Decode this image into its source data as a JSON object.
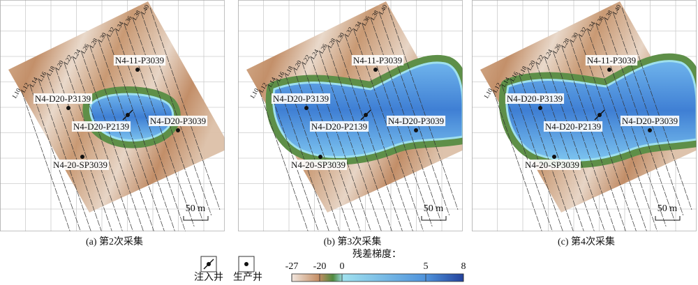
{
  "panels": [
    {
      "caption": "(a) 第2次采集",
      "scale": "50 m",
      "wells": [
        "N4-11-P3039",
        "N4-D20-P3139",
        "N4-D20-P2139",
        "N4-D20-P3039",
        "N4-20-SP3039"
      ]
    },
    {
      "caption": "(b) 第3次采集",
      "scale": "50 m",
      "wells": [
        "N4-11-P3039",
        "N4-D20-P3139",
        "N4-D20-P2139",
        "N4-D20-P3039",
        "N4-20-SP3039"
      ]
    },
    {
      "caption": "(c) 第4次采集",
      "scale": "50 m",
      "wells": [
        "N4-11-P3039",
        "N4-D20-P3139",
        "N4-D20-P2139",
        "N4-D20-P3039",
        "N4-20-SP3039"
      ]
    }
  ],
  "survey_lines": [
    "L10",
    "L12",
    "L14",
    "L16",
    "L18",
    "L20",
    "L22",
    "L24",
    "L26",
    "L28",
    "L30",
    "L32",
    "L34",
    "L36",
    "L38",
    "L40"
  ],
  "legend": {
    "injection": "注入井",
    "production": "生产井"
  },
  "colorbar": {
    "title": "残差梯度：",
    "ticks": [
      -27,
      -20,
      0,
      5,
      8
    ]
  }
}
